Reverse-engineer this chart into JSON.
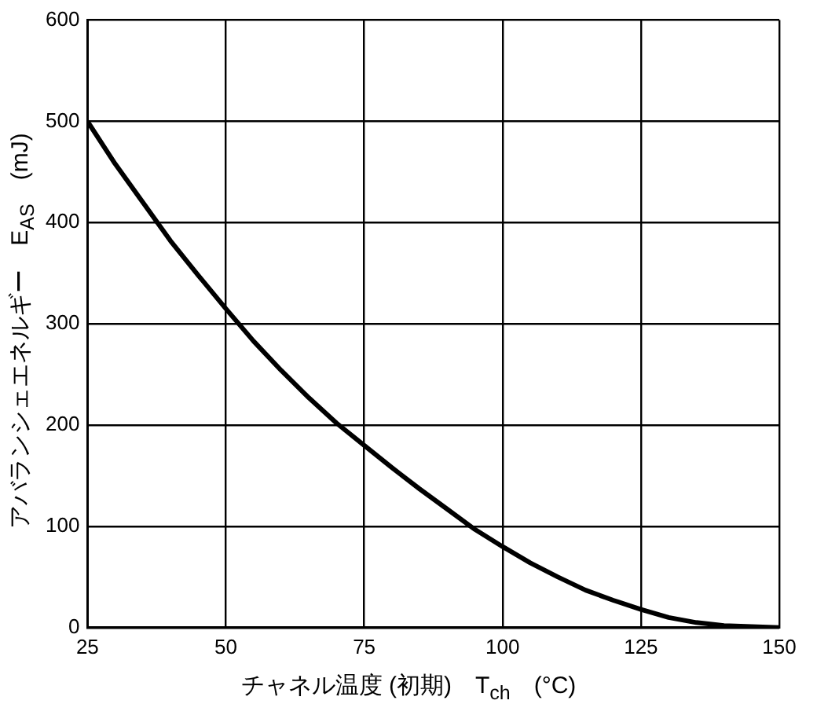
{
  "chart_data": {
    "type": "line",
    "xlabel": "チャネル温度 (初期)　T$_{ch}$　(°C)",
    "ylabel": "アバランシェエネルギー　E$_{AS}$　(mJ)",
    "x": [
      25,
      30,
      35,
      40,
      45,
      50,
      55,
      60,
      65,
      70,
      75,
      80,
      85,
      90,
      95,
      100,
      105,
      110,
      115,
      120,
      125,
      130,
      135,
      140,
      145,
      150
    ],
    "series": [
      {
        "color": "#000000",
        "values": [
          500,
          458,
          420,
          382,
          348,
          315,
          283,
          254,
          227,
          202,
          180,
          158,
          137,
          117,
          97,
          80,
          64,
          50,
          37,
          27,
          18,
          10,
          5,
          2,
          1,
          0
        ]
      }
    ],
    "xlim": [
      25,
      150
    ],
    "xticks": [
      25,
      50,
      75,
      100,
      125,
      150
    ],
    "ylim": [
      0,
      600
    ],
    "yticks": [
      0,
      100,
      200,
      300,
      400,
      500,
      600
    ],
    "grid": true,
    "legend": false,
    "marker": "none",
    "line_style": "solid"
  }
}
